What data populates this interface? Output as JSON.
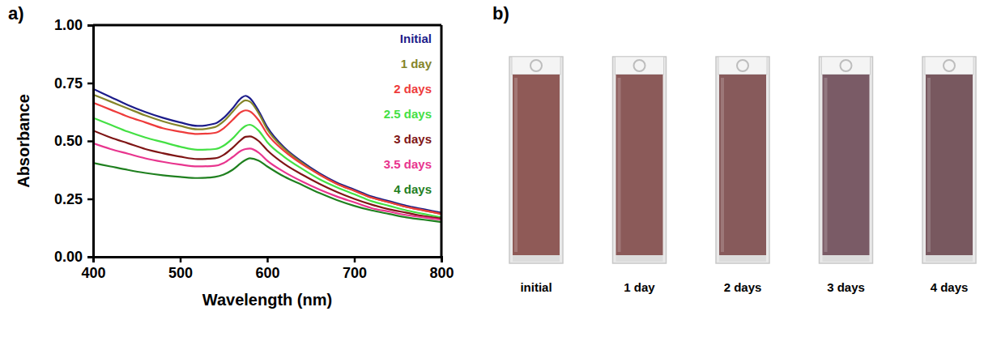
{
  "chart_data": {
    "type": "line",
    "panel_label": "a)",
    "x_label": "Wavelength (nm)",
    "y_label": "Absorbance",
    "x": [
      400,
      420,
      440,
      460,
      480,
      500,
      520,
      540,
      550,
      560,
      570,
      575,
      580,
      590,
      600,
      620,
      640,
      660,
      680,
      700,
      720,
      740,
      760,
      780,
      800
    ],
    "xlim": [
      400,
      800
    ],
    "xticks": [
      400,
      500,
      600,
      700,
      800
    ],
    "ylim": [
      0,
      1
    ],
    "yticks": [
      {
        "value": 0,
        "label": "0.00"
      },
      {
        "value": 0.25,
        "label": "0.25"
      },
      {
        "value": 0.5,
        "label": "0.50"
      },
      {
        "value": 0.75,
        "label": "0.75"
      },
      {
        "value": 1,
        "label": "1.00"
      }
    ],
    "grid": false,
    "legend": "top-right",
    "series": [
      {
        "name": "Initial",
        "color": "#1c1c8a",
        "values": [
          0.725,
          0.69,
          0.655,
          0.625,
          0.6,
          0.58,
          0.565,
          0.575,
          0.6,
          0.64,
          0.685,
          0.695,
          0.685,
          0.63,
          0.56,
          0.47,
          0.41,
          0.36,
          0.32,
          0.29,
          0.26,
          0.24,
          0.22,
          0.205,
          0.19
        ]
      },
      {
        "name": "1 day",
        "color": "#85852a",
        "values": [
          0.7,
          0.67,
          0.64,
          0.61,
          0.585,
          0.565,
          0.55,
          0.56,
          0.585,
          0.625,
          0.665,
          0.675,
          0.67,
          0.62,
          0.55,
          0.465,
          0.405,
          0.355,
          0.315,
          0.285,
          0.255,
          0.235,
          0.215,
          0.2,
          0.185
        ]
      },
      {
        "name": "2 days",
        "color": "#ee3b3b",
        "values": [
          0.665,
          0.635,
          0.605,
          0.58,
          0.555,
          0.54,
          0.53,
          0.535,
          0.555,
          0.59,
          0.625,
          0.632,
          0.628,
          0.59,
          0.53,
          0.455,
          0.4,
          0.355,
          0.315,
          0.285,
          0.255,
          0.235,
          0.215,
          0.2,
          0.185
        ]
      },
      {
        "name": "2.5 days",
        "color": "#44e044",
        "values": [
          0.6,
          0.57,
          0.54,
          0.515,
          0.495,
          0.475,
          0.462,
          0.465,
          0.48,
          0.51,
          0.55,
          0.565,
          0.57,
          0.545,
          0.495,
          0.43,
          0.38,
          0.335,
          0.3,
          0.27,
          0.24,
          0.22,
          0.2,
          0.185,
          0.17
        ]
      },
      {
        "name": "3 days",
        "color": "#7f1515",
        "values": [
          0.545,
          0.515,
          0.49,
          0.465,
          0.447,
          0.432,
          0.422,
          0.425,
          0.44,
          0.47,
          0.505,
          0.518,
          0.52,
          0.5,
          0.46,
          0.4,
          0.355,
          0.315,
          0.28,
          0.25,
          0.225,
          0.205,
          0.19,
          0.175,
          0.165
        ]
      },
      {
        "name": "3.5 days",
        "color": "#e8358e",
        "values": [
          0.49,
          0.465,
          0.445,
          0.425,
          0.41,
          0.398,
          0.39,
          0.393,
          0.405,
          0.43,
          0.458,
          0.465,
          0.467,
          0.45,
          0.415,
          0.365,
          0.325,
          0.29,
          0.26,
          0.235,
          0.21,
          0.195,
          0.18,
          0.17,
          0.16
        ]
      },
      {
        "name": "4 days",
        "color": "#1f801f",
        "values": [
          0.405,
          0.39,
          0.375,
          0.362,
          0.352,
          0.345,
          0.34,
          0.345,
          0.355,
          0.375,
          0.405,
          0.418,
          0.425,
          0.415,
          0.39,
          0.345,
          0.31,
          0.275,
          0.245,
          0.22,
          0.2,
          0.185,
          0.17,
          0.16,
          0.15
        ]
      }
    ]
  },
  "photos": {
    "panel_label": "b)",
    "items": [
      {
        "label": "initial",
        "color": "#8f5a57"
      },
      {
        "label": "1 day",
        "color": "#8b5a59"
      },
      {
        "label": "2 days",
        "color": "#875a5b"
      },
      {
        "label": "3 days",
        "color": "#7a5b66"
      },
      {
        "label": "4 days",
        "color": "#78585f"
      }
    ]
  }
}
